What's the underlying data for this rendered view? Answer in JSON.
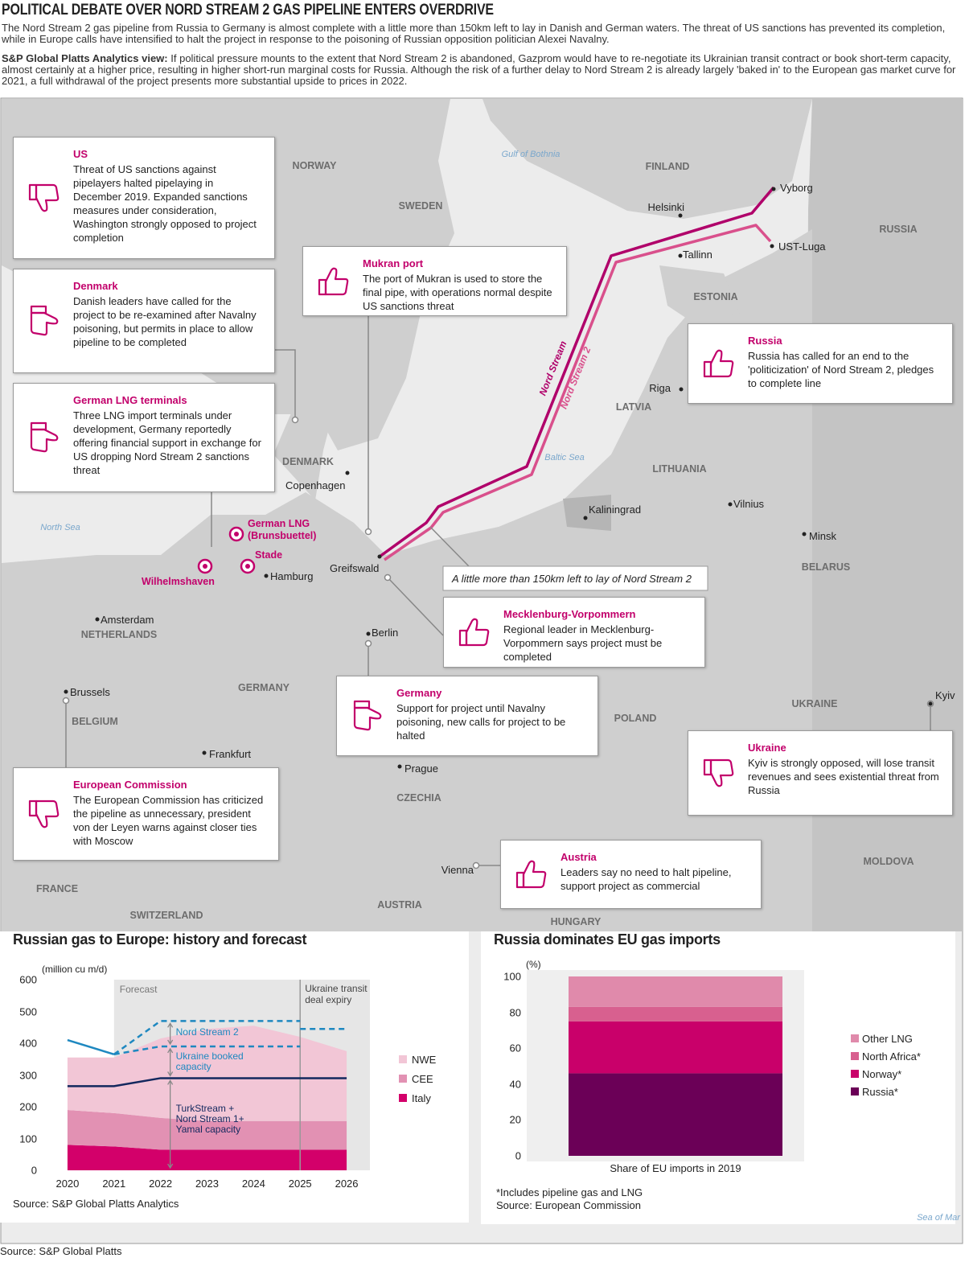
{
  "header": {
    "title": "POLITICAL DEBATE OVER NORD STREAM 2 GAS PIPELINE ENTERS OVERDRIVE",
    "intro": "The Nord Stream 2 gas pipeline from Russia to Germany is almost complete with a little more than 150km left to lay in Danish and German waters. The threat of US sanctions has prevented its completion, while in Europe calls have intensified to halt the project in response to the poisoning of Russian opposition politician Alexei Navalny.",
    "view": {
      "lead": "S&P Global Platts Analytics view:",
      "text": "If political pressure mounts to the extent that Nord Stream 2 is abandoned, Gazprom would have to re-negotiate its Ukrainian transit contract or book short-term capacity, almost certainly at a higher price, resulting in higher short-run marginal costs for Russia. Although the risk of a further delay to Nord Stream 2 is already largely 'baked in' to the European gas market curve for 2021, a full withdrawal of the project presents more substantial upside to prices in 2022."
    }
  },
  "map": {
    "countries": [
      "NORWAY",
      "SWEDEN",
      "FINLAND",
      "RUSSIA",
      "ESTONIA",
      "LATVIA",
      "LITHUANIA",
      "BELARUS",
      "DENMARK",
      "NETHERLANDS",
      "GERMANY",
      "BELGIUM",
      "POLAND",
      "UKRAINE",
      "CZECHIA",
      "FRANCE",
      "SWITZERLAND",
      "AUSTRIA",
      "HUNGARY",
      "MOLDOVA"
    ],
    "seas": [
      "Gulf of Bothnia",
      "Baltic Sea",
      "North Sea",
      "Sea of Mar"
    ],
    "cities": [
      "Vyborg",
      "Helsinki",
      "UST-Luga",
      "Tallinn",
      "Riga",
      "Copenhagen",
      "Kaliningrad",
      "Vilnius",
      "Minsk",
      "Greifswald",
      "Hamburg",
      "Amsterdam",
      "Berlin",
      "Brussels",
      "Frankfurt",
      "Prague",
      "Vienna",
      "Kyiv"
    ],
    "lng_terminals": [
      "German LNG (Brunsbuettel)",
      "Stade",
      "Wilhelmshaven"
    ],
    "pipelines": [
      "Nord Stream",
      "Nord Stream 2"
    ],
    "annotation": "A little more than 150km left to lay of Nord Stream 2",
    "callouts": [
      {
        "title": "US",
        "text": "Threat of US sanctions against pipelayers halted pipelaying in December 2019. Expanded sanctions measures under consideration, Washington strongly opposed to project completion",
        "icon": "thumbs-down"
      },
      {
        "title": "Denmark",
        "text": "Danish leaders have called for the project to be re-examined after Navalny poisoning, but permits in place to allow pipeline to be completed",
        "icon": "thumbs-side"
      },
      {
        "title": "German LNG terminals",
        "text": "Three LNG import terminals under development, Germany reportedly offering financial support in exchange for US dropping Nord Stream 2 sanctions threat",
        "icon": "thumbs-side"
      },
      {
        "title": "Mukran port",
        "text": "The port of Mukran is used to store the final pipe, with operations normal despite US sanctions threat",
        "icon": "thumbs-up"
      },
      {
        "title": "Russia",
        "text": "Russia has called for an end to the 'politicization' of Nord Stream 2, pledges to complete line",
        "icon": "thumbs-up"
      },
      {
        "title": "Mecklenburg-Vorpommern",
        "text": "Regional leader in Mecklenburg-Vorpommern says project must be completed",
        "icon": "thumbs-up"
      },
      {
        "title": "Germany",
        "text": "Support for project until Navalny poisoning, new calls for project to be halted",
        "icon": "thumbs-side"
      },
      {
        "title": "Ukraine",
        "text": "Kyiv is strongly opposed, will lose transit revenues and sees existential threat from Russia",
        "icon": "thumbs-down"
      },
      {
        "title": "European Commission",
        "text": "The European Commission has criticized the pipeline as unnecessary, president von der Leyen warns against closer ties with Moscow",
        "icon": "thumbs-down"
      },
      {
        "title": "Austria",
        "text": "Leaders say no need to halt pipeline, support project as commercial",
        "icon": "thumbs-up"
      }
    ]
  },
  "chart_data": [
    {
      "type": "area",
      "stacked": true,
      "title": "Russian gas to Europe: history and forecast",
      "y_label": "(million cu m/d)",
      "x": [
        2020,
        2021,
        2022,
        2023,
        2024,
        2025,
        2026
      ],
      "xlim": [
        2019.5,
        2026.5
      ],
      "xticks": [
        2020,
        2021,
        2022,
        2023,
        2024,
        2025,
        2026
      ],
      "ylim": [
        0,
        600
      ],
      "yticks": [
        0,
        100,
        200,
        300,
        400,
        500,
        600
      ],
      "series": [
        {
          "name": "Italy",
          "color": "#d3006a",
          "values": [
            80,
            75,
            65,
            65,
            65,
            65,
            65
          ]
        },
        {
          "name": "CEE",
          "color": "#e291b3",
          "values": [
            110,
            105,
            100,
            90,
            90,
            90,
            90
          ]
        },
        {
          "name": "NWE",
          "color": "#f2c6d6",
          "values": [
            165,
            175,
            250,
            290,
            300,
            265,
            220
          ]
        }
      ],
      "lines": [
        {
          "x": [
            2020,
            2021
          ],
          "values": [
            410,
            365
          ],
          "color": "#1e88c0",
          "dashed": false
        },
        {
          "x": [
            2020,
            2021,
            2022,
            2026
          ],
          "values": [
            265,
            265,
            290,
            290
          ],
          "color": "#13285e",
          "dashed": false
        },
        {
          "x": [
            2021,
            2022,
            2025
          ],
          "values": [
            365,
            470,
            470
          ],
          "color": "#1e88c0",
          "dashed": true
        },
        {
          "x": [
            2021,
            2022,
            2025
          ],
          "values": [
            365,
            390,
            390
          ],
          "color": "#1e88c0",
          "dashed": true
        },
        {
          "x": [
            2025,
            2026
          ],
          "values": [
            445,
            445
          ],
          "color": "#1e88c0",
          "dashed": true
        }
      ],
      "forecast": {
        "start": 2021,
        "label": "Forecast"
      },
      "marker": {
        "x": 2025,
        "label": "Ukraine transit deal expiry"
      },
      "annotations": [
        "Nord Stream 2",
        "Ukraine booked capacity",
        "TurkStream + Nord Stream 1+ Yamal capacity"
      ],
      "source": "Source: S&P Global Platts Analytics"
    },
    {
      "type": "bar",
      "stacked": true,
      "title": "Russia dominates EU gas imports",
      "y_label": "(%)",
      "categories": [
        "Share of EU imports in 2019"
      ],
      "ylim": [
        0,
        100
      ],
      "yticks": [
        0,
        20,
        40,
        60,
        80,
        100
      ],
      "series": [
        {
          "name": "Russia*",
          "color": "#6b0057",
          "values": [
            46
          ]
        },
        {
          "name": "Norway*",
          "color": "#c9006a",
          "values": [
            29
          ]
        },
        {
          "name": "North Africa*",
          "color": "#d8608f",
          "values": [
            8
          ]
        },
        {
          "name": "Other LNG",
          "color": "#e08aab",
          "values": [
            17
          ]
        }
      ],
      "note": "*Includes pipeline gas and LNG",
      "source": "Source: European Commission"
    }
  ],
  "footer": {
    "source": "Source: S&P Global Platts"
  }
}
